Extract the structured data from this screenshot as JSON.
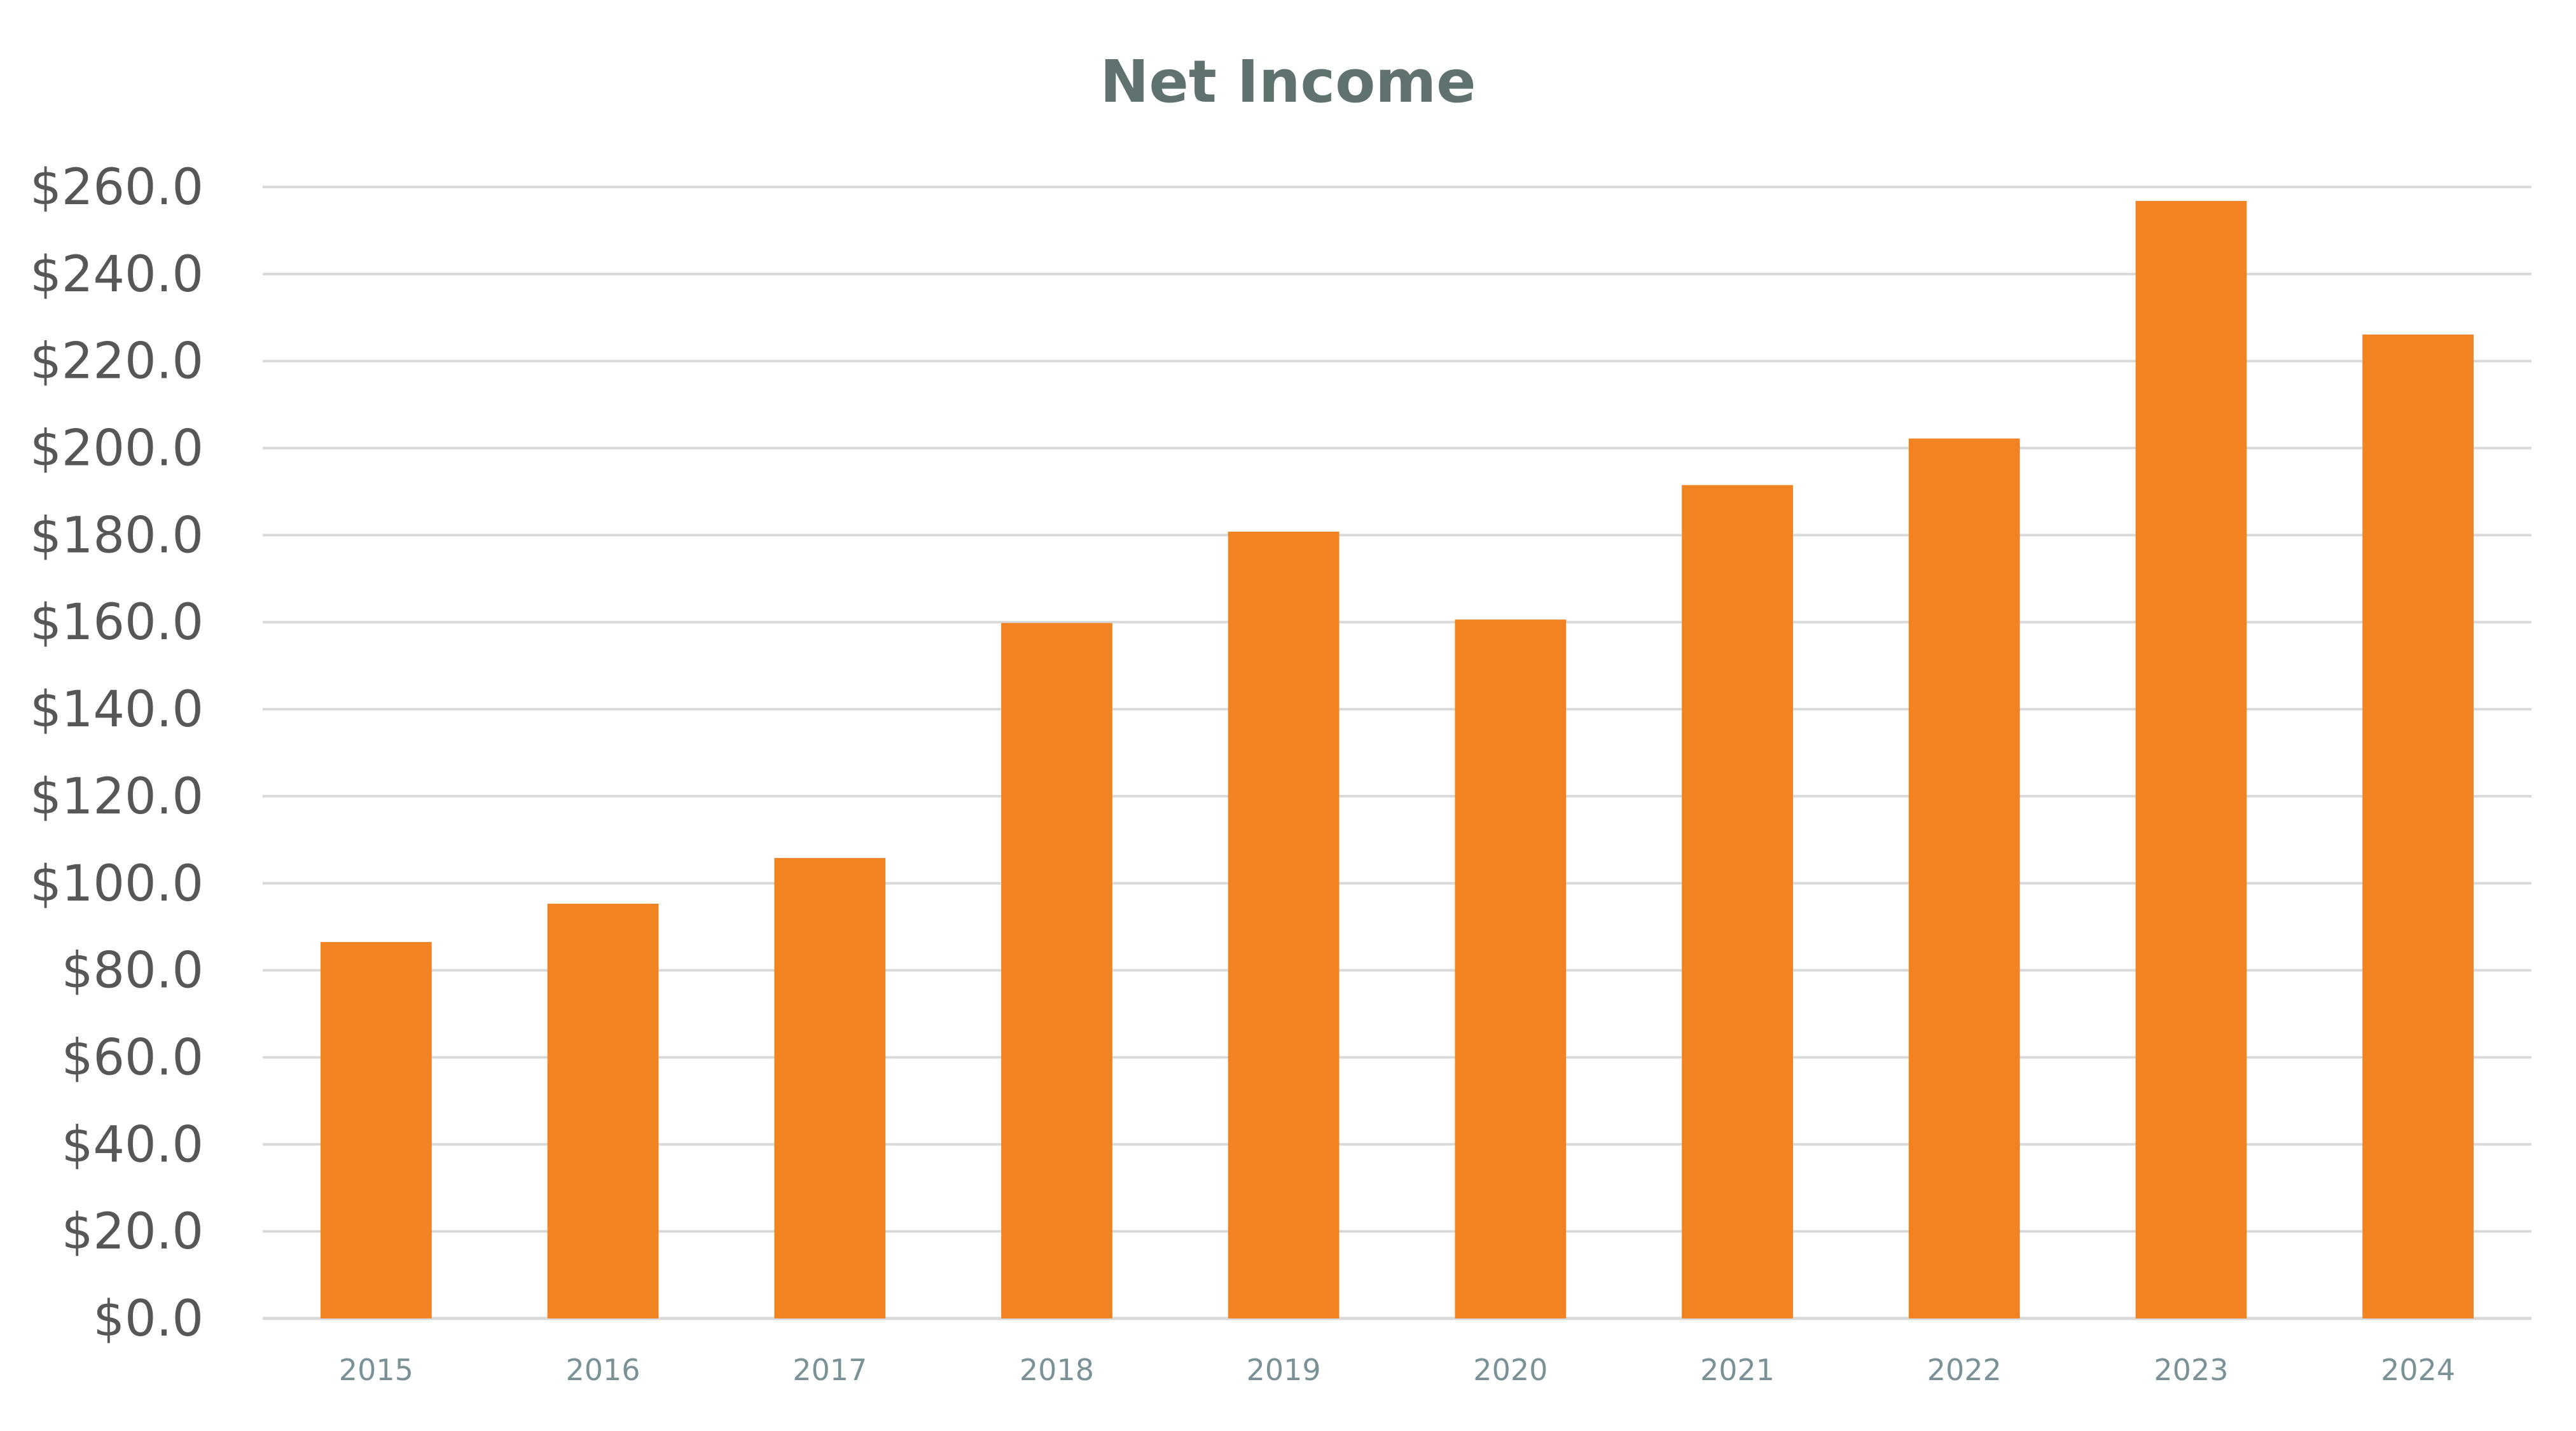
{
  "chart_data": {
    "type": "bar",
    "title": "Net Income",
    "xlabel": "",
    "ylabel": "",
    "categories": [
      "2015",
      "2016",
      "2017",
      "2018",
      "2019",
      "2020",
      "2021",
      "2022",
      "2023",
      "2024"
    ],
    "values": [
      86.5,
      95.3,
      105.8,
      159.8,
      180.8,
      160.6,
      191.5,
      202.2,
      256.8,
      226.1
    ],
    "ylim": [
      0,
      260
    ],
    "y_ticks": [
      0,
      20,
      40,
      60,
      80,
      100,
      120,
      140,
      160,
      180,
      200,
      220,
      240,
      260
    ],
    "y_tick_labels": [
      "$0.0",
      "$20.0",
      "$40.0",
      "$60.0",
      "$80.0",
      "$100.0",
      "$120.0",
      "$140.0",
      "$160.0",
      "$180.0",
      "$200.0",
      "$220.0",
      "$240.0",
      "$260.0"
    ],
    "grid": true,
    "legend": "none",
    "bar_color": "#f28323",
    "title_color": "#5f7270",
    "y_tick_color": "#575757",
    "x_tick_color": "#7a9296",
    "grid_color": "#d9d9d9"
  }
}
